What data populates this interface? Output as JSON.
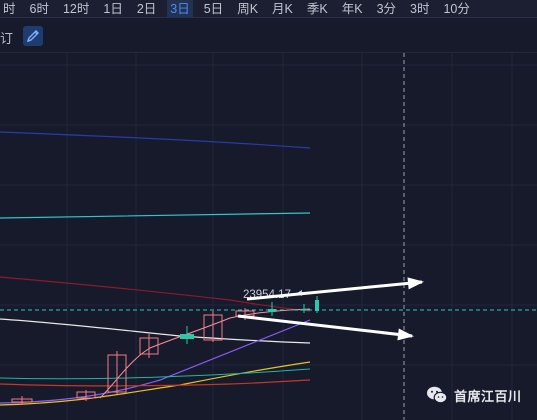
{
  "toolbar": {
    "items": [
      {
        "label": "时"
      },
      {
        "label": "6时"
      },
      {
        "label": "12时"
      },
      {
        "label": "1日"
      },
      {
        "label": "2日"
      },
      {
        "label": "3日",
        "active": true
      },
      {
        "label": "5日"
      },
      {
        "label": "周K"
      },
      {
        "label": "月K"
      },
      {
        "label": "季K"
      },
      {
        "label": "年K"
      },
      {
        "label": "3分"
      },
      {
        "label": "3时"
      },
      {
        "label": "10分"
      }
    ]
  },
  "subbar": {
    "fragment": "订",
    "draw_tool_icon": "draw-pen-icon"
  },
  "chart_data": {
    "type": "candlestick",
    "price_label": "23954.17",
    "series": [
      {
        "color": "#2a3aa8"
      },
      {
        "color": "#2ec7c9"
      },
      {
        "color": "#8a1a2c"
      },
      {
        "color": "#e8e8e8"
      },
      {
        "color": "#8b5cf6"
      },
      {
        "color": "#e6c229"
      },
      {
        "color": "#c0392b"
      }
    ],
    "colors": {
      "up": "#f47a86",
      "down": "#2ec7a8",
      "price_line": "#2ec7c9",
      "arrow": "#ffffff"
    }
  },
  "watermark": {
    "icon": "wechat-icon",
    "text": "首席江百川"
  }
}
